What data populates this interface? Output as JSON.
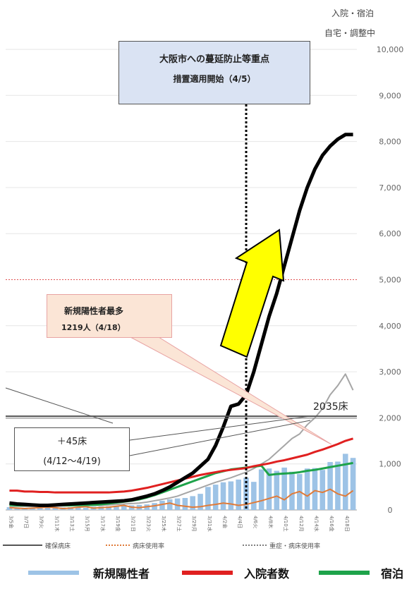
{
  "top_labels": {
    "hospitalized_hotel": "入院・宿泊",
    "home_adjusting": "自宅・調整中"
  },
  "callouts": {
    "emergency_line1": "大阪市への蔓延防止等重点",
    "emergency_line2": "措置適用開始（4/5）",
    "max_new_line1": "新規陽性者最多",
    "max_new_line2": "1219人（4/18）",
    "beds_increase_line1": "＋45床",
    "beds_increase_line2": "(4/12〜4/19)",
    "beds_total": "2035床"
  },
  "mini_legend": {
    "secured_beds": "確保病床",
    "bed_usage": "病床使用率",
    "severe_bed_usage": "重症・病床使用率"
  },
  "legend": {
    "new_positive": "新規陽性者",
    "hospitalized": "入院者数",
    "hotel": "宿泊"
  },
  "colors": {
    "new_positive": "#9dc3e6",
    "hospitalized": "#e02020",
    "hotel": "#1ea34a",
    "home": "#000000",
    "severe": "#e07b39",
    "total": "#a6a6a6",
    "beds": "#555555",
    "arrow": "#ffff00",
    "dotted_line": "#000000",
    "threshold": "#e05050"
  },
  "chart_data": {
    "type": "bar",
    "x": [
      "3/5",
      "3/6",
      "3/7",
      "3/8",
      "3/9",
      "3/10",
      "3/11",
      "3/12",
      "3/13",
      "3/14",
      "3/15",
      "3/16",
      "3/17",
      "3/18",
      "3/19",
      "3/20",
      "3/21",
      "3/22",
      "3/23",
      "3/24",
      "3/25",
      "3/26",
      "3/27",
      "3/28",
      "3/29",
      "3/30",
      "3/31",
      "4/1",
      "4/2",
      "4/3",
      "4/4",
      "4/5",
      "4/6",
      "4/7",
      "4/8",
      "4/9",
      "4/10",
      "4/11",
      "4/12",
      "4/13",
      "4/14",
      "4/15",
      "4/16",
      "4/17",
      "4/18",
      "4/19"
    ],
    "xtick_labels": [
      "3/5金",
      "3/7日",
      "3/9火",
      "3/11木",
      "3/13土",
      "3/15月",
      "3/17水",
      "3/19金",
      "3/21日",
      "3/23火",
      "3/25木",
      "3/27土",
      "3/29月",
      "3/31水",
      "4/2金",
      "4/4日",
      "4/6火",
      "4/8木",
      "4/10土",
      "4/12月",
      "4/14水",
      "4/16金",
      "4/18日"
    ],
    "y_ticks": [
      "0",
      "1,000",
      "2,000",
      "3,000",
      "4,000",
      "5,000",
      "6,000",
      "7,000",
      "8,000",
      "9,000",
      "10,000"
    ],
    "ylim": [
      0,
      10000
    ],
    "series": [
      {
        "name": "新規陽性者",
        "type": "bar",
        "values": [
          60,
          50,
          45,
          40,
          55,
          60,
          58,
          55,
          60,
          65,
          45,
          70,
          75,
          80,
          90,
          95,
          100,
          110,
          120,
          150,
          200,
          230,
          250,
          260,
          300,
          350,
          500,
          550,
          600,
          620,
          660,
          700,
          610,
          880,
          900,
          850,
          920,
          830,
          780,
          900,
          910,
          870,
          1040,
          1050,
          1219,
          1130
        ]
      },
      {
        "name": "入院者数",
        "type": "line",
        "values": [
          420,
          420,
          400,
          400,
          390,
          390,
          380,
          380,
          380,
          380,
          380,
          380,
          380,
          380,
          390,
          400,
          420,
          450,
          480,
          520,
          560,
          600,
          640,
          680,
          720,
          760,
          790,
          820,
          850,
          870,
          890,
          910,
          950,
          980,
          1010,
          1050,
          1080,
          1120,
          1160,
          1200,
          1260,
          1310,
          1370,
          1430,
          1500,
          1550
        ]
      },
      {
        "name": "宿泊",
        "type": "line",
        "values": [
          110,
          100,
          100,
          95,
          95,
          100,
          100,
          100,
          100,
          105,
          110,
          110,
          120,
          140,
          160,
          180,
          200,
          230,
          270,
          320,
          380,
          440,
          500,
          560,
          620,
          680,
          740,
          800,
          840,
          880,
          900,
          920,
          940,
          960,
          760,
          780,
          790,
          800,
          820,
          850,
          870,
          900,
          930,
          960,
          990,
          1020
        ]
      }
    ]
  }
}
